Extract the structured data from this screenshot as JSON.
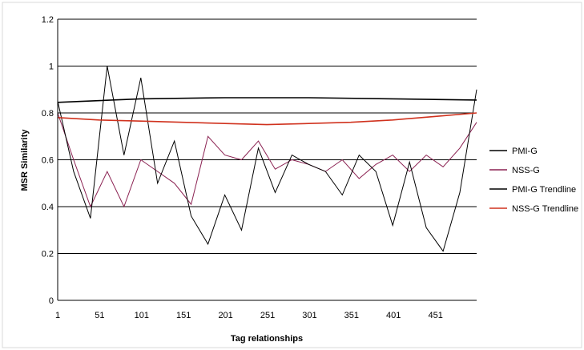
{
  "chart_data": {
    "type": "line",
    "title": "",
    "xlabel": "Tag relationships",
    "ylabel": "MSR Similarity",
    "xlim": [
      1,
      500
    ],
    "ylim": [
      0,
      1.2
    ],
    "x_ticks": [
      "1",
      "51",
      "101",
      "151",
      "201",
      "251",
      "301",
      "351",
      "401",
      "451"
    ],
    "y_ticks": [
      "0",
      "0.2",
      "0.4",
      "0.6",
      "0.8",
      "1",
      "1.2"
    ],
    "grid": "horizontal major gridlines",
    "legend_position": "right",
    "series": [
      {
        "name": "PMI-G",
        "color": "#000000",
        "x": [
          1,
          20,
          40,
          60,
          80,
          100,
          120,
          140,
          160,
          180,
          200,
          220,
          240,
          260,
          280,
          300,
          320,
          340,
          360,
          380,
          400,
          420,
          440,
          460,
          480,
          500
        ],
        "values": [
          0.85,
          0.55,
          0.35,
          1.0,
          0.62,
          0.95,
          0.5,
          0.68,
          0.36,
          0.24,
          0.45,
          0.3,
          0.65,
          0.46,
          0.62,
          0.58,
          0.55,
          0.45,
          0.62,
          0.55,
          0.32,
          0.59,
          0.31,
          0.21,
          0.46,
          0.9
        ]
      },
      {
        "name": "NSS-G",
        "color": "#8b2252",
        "x": [
          1,
          20,
          40,
          60,
          80,
          100,
          120,
          140,
          160,
          180,
          200,
          220,
          240,
          260,
          280,
          300,
          320,
          340,
          360,
          380,
          400,
          420,
          440,
          460,
          480,
          500
        ],
        "values": [
          0.8,
          0.6,
          0.4,
          0.55,
          0.4,
          0.6,
          0.55,
          0.5,
          0.41,
          0.7,
          0.62,
          0.6,
          0.68,
          0.56,
          0.6,
          0.58,
          0.55,
          0.6,
          0.52,
          0.58,
          0.62,
          0.55,
          0.62,
          0.57,
          0.65,
          0.76
        ]
      },
      {
        "name": "PMI-G Trendline",
        "color": "#000000",
        "x": [
          1,
          100,
          200,
          300,
          400,
          500
        ],
        "values": [
          0.845,
          0.86,
          0.865,
          0.865,
          0.86,
          0.855
        ]
      },
      {
        "name": "NSS-G Trendline",
        "color": "#d0321e",
        "x": [
          1,
          50,
          100,
          150,
          200,
          250,
          300,
          350,
          400,
          450,
          500
        ],
        "values": [
          0.78,
          0.77,
          0.765,
          0.76,
          0.755,
          0.75,
          0.755,
          0.76,
          0.77,
          0.785,
          0.8
        ]
      }
    ]
  }
}
